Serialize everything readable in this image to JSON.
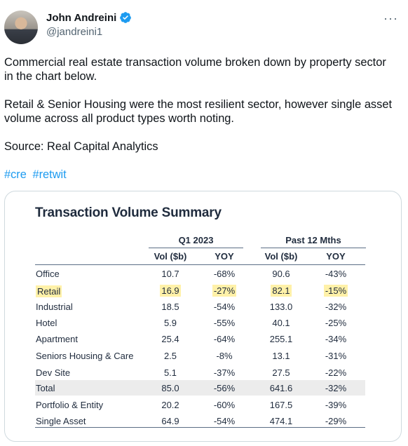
{
  "author": {
    "name": "John Andreini",
    "handle": "@jandreini1"
  },
  "more_label": "···",
  "tweet": {
    "paragraphs": [
      "Commercial real estate transaction volume broken down by property sector in the chart below.",
      "Retail & Senior Housing were the most resilient sector, however single asset volume across all product types worth noting.",
      "Source:  Real Capital Analytics"
    ],
    "hashtags": [
      "#cre",
      "#retwit"
    ]
  },
  "table": {
    "title": "Transaction Volume Summary",
    "groups": [
      "Q1 2023",
      "Past 12 Mths"
    ],
    "columns": [
      "Vol ($b)",
      "YOY",
      "Vol ($b)",
      "YOY"
    ],
    "highlight_color": "#fff1a8",
    "rows": [
      {
        "label": "Office",
        "q1_vol": "10.7",
        "q1_yoy": "-68%",
        "p12_vol": "90.6",
        "p12_yoy": "-43%"
      },
      {
        "label": "Retail",
        "q1_vol": "16.9",
        "q1_yoy": "-27%",
        "p12_vol": "82.1",
        "p12_yoy": "-15%"
      },
      {
        "label": "Industrial",
        "q1_vol": "18.5",
        "q1_yoy": "-54%",
        "p12_vol": "133.0",
        "p12_yoy": "-32%"
      },
      {
        "label": "Hotel",
        "q1_vol": "5.9",
        "q1_yoy": "-55%",
        "p12_vol": "40.1",
        "p12_yoy": "-25%"
      },
      {
        "label": "Apartment",
        "q1_vol": "25.4",
        "q1_yoy": "-64%",
        "p12_vol": "255.1",
        "p12_yoy": "-34%"
      },
      {
        "label": "Seniors Housing & Care",
        "q1_vol": "2.5",
        "q1_yoy": "-8%",
        "p12_vol": "13.1",
        "p12_yoy": "-31%"
      },
      {
        "label": "Dev Site",
        "q1_vol": "5.1",
        "q1_yoy": "-37%",
        "p12_vol": "27.5",
        "p12_yoy": "-22%"
      },
      {
        "label": "Total",
        "q1_vol": "85.0",
        "q1_yoy": "-56%",
        "p12_vol": "641.6",
        "p12_yoy": "-32%"
      },
      {
        "label": "Portfolio & Entity",
        "q1_vol": "20.2",
        "q1_yoy": "-60%",
        "p12_vol": "167.5",
        "p12_yoy": "-39%"
      },
      {
        "label": "Single Asset",
        "q1_vol": "64.9",
        "q1_yoy": "-54%",
        "p12_vol": "474.1",
        "p12_yoy": "-29%"
      }
    ]
  }
}
